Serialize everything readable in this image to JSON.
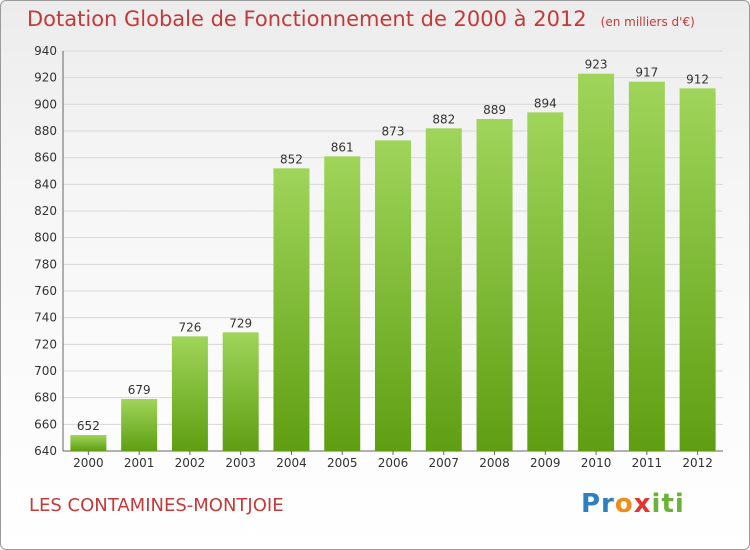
{
  "title": "Dotation Globale de Fonctionnement de 2000 à 2012",
  "unit": "(en milliers d'€)",
  "place": "LES CONTAMINES-MONTJOIE",
  "logo": "Proxiti",
  "colors": {
    "title": "#c23a3a",
    "bar_top": "#9fd55a",
    "bar_bottom": "#5f9e12",
    "grid": "#d8d8d8",
    "axis": "#666666"
  },
  "chart_data": {
    "type": "bar",
    "title": "Dotation Globale de Fonctionnement de 2000 à 2012",
    "xlabel": "",
    "ylabel": "",
    "categories": [
      "2000",
      "2001",
      "2002",
      "2003",
      "2004",
      "2005",
      "2006",
      "2007",
      "2008",
      "2009",
      "2010",
      "2011",
      "2012"
    ],
    "values": [
      652,
      679,
      726,
      729,
      852,
      861,
      873,
      882,
      889,
      894,
      923,
      917,
      912
    ],
    "ylim": [
      640,
      940
    ],
    "yticks": [
      640,
      660,
      680,
      700,
      720,
      740,
      760,
      780,
      800,
      820,
      840,
      860,
      880,
      900,
      920,
      940
    ],
    "grid": true,
    "legend": "none"
  }
}
